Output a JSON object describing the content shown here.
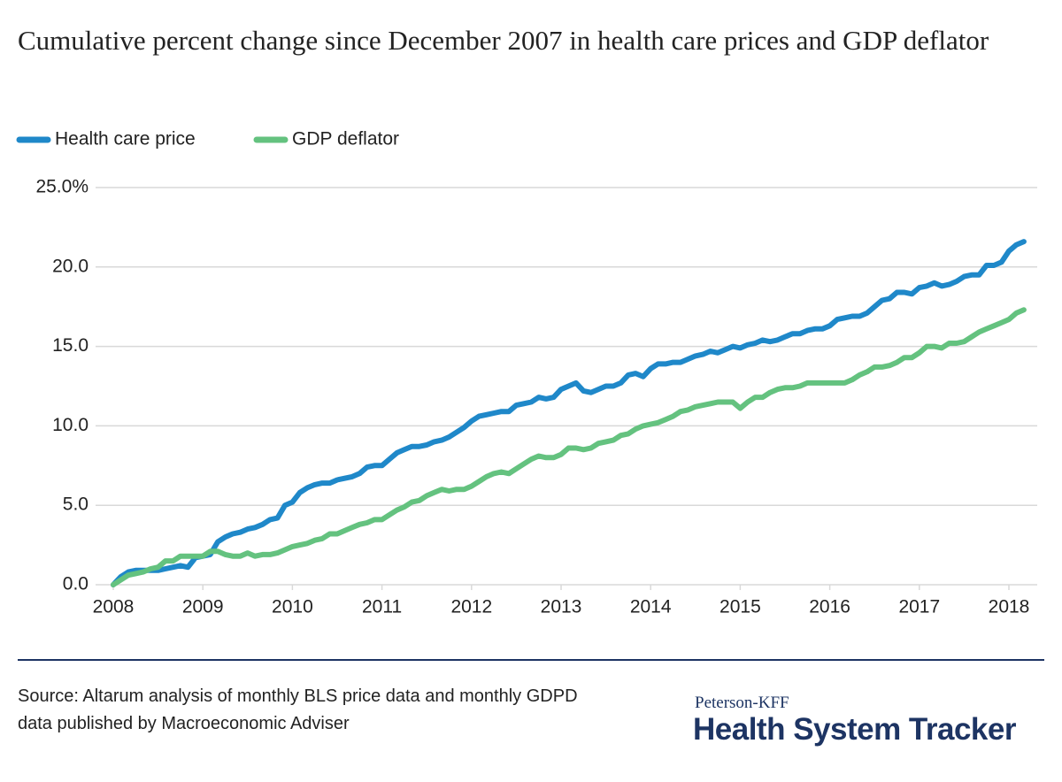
{
  "chart_data": {
    "type": "line",
    "title": "Cumulative percent change since December 2007 in health care prices and GDP deflator",
    "series": [
      {
        "name": "Health care price",
        "color": "#1f88c9",
        "values": [
          0,
          0.5,
          0.8,
          0.9,
          0.9,
          0.9,
          0.9,
          1.0,
          1.1,
          1.2,
          1.1,
          1.7,
          1.8,
          1.9,
          2.7,
          3.0,
          3.2,
          3.3,
          3.5,
          3.6,
          3.8,
          4.1,
          4.2,
          5.0,
          5.2,
          5.8,
          6.1,
          6.3,
          6.4,
          6.4,
          6.6,
          6.7,
          6.8,
          7.0,
          7.4,
          7.5,
          7.5,
          7.9,
          8.3,
          8.5,
          8.7,
          8.7,
          8.8,
          9.0,
          9.1,
          9.3,
          9.6,
          9.9,
          10.3,
          10.6,
          10.7,
          10.8,
          10.9,
          10.9,
          11.3,
          11.4,
          11.5,
          11.8,
          11.7,
          11.8,
          12.3,
          12.5,
          12.7,
          12.2,
          12.1,
          12.3,
          12.5,
          12.5,
          12.7,
          13.2,
          13.3,
          13.1,
          13.6,
          13.9,
          13.9,
          14.0,
          14.0,
          14.2,
          14.4,
          14.5,
          14.7,
          14.6,
          14.8,
          15.0,
          14.9,
          15.1,
          15.2,
          15.4,
          15.3,
          15.4,
          15.6,
          15.8,
          15.8,
          16.0,
          16.1,
          16.1,
          16.3,
          16.7,
          16.8,
          16.9,
          16.9,
          17.1,
          17.5,
          17.9,
          18.0,
          18.4,
          18.4,
          18.3,
          18.7,
          18.8,
          19.0,
          18.8,
          18.9,
          19.1,
          19.4,
          19.5,
          19.5,
          20.1,
          20.1,
          20.3,
          21.0,
          21.4,
          21.6
        ]
      },
      {
        "name": "GDP deflator",
        "color": "#64c27f",
        "values": [
          0,
          0.3,
          0.6,
          0.7,
          0.8,
          1.0,
          1.1,
          1.5,
          1.5,
          1.8,
          1.8,
          1.8,
          1.8,
          2.1,
          2.1,
          1.9,
          1.8,
          1.8,
          2.0,
          1.8,
          1.9,
          1.9,
          2.0,
          2.2,
          2.4,
          2.5,
          2.6,
          2.8,
          2.9,
          3.2,
          3.2,
          3.4,
          3.6,
          3.8,
          3.9,
          4.1,
          4.1,
          4.4,
          4.7,
          4.9,
          5.2,
          5.3,
          5.6,
          5.8,
          6.0,
          5.9,
          6.0,
          6.0,
          6.2,
          6.5,
          6.8,
          7.0,
          7.1,
          7.0,
          7.3,
          7.6,
          7.9,
          8.1,
          8.0,
          8.0,
          8.2,
          8.6,
          8.6,
          8.5,
          8.6,
          8.9,
          9.0,
          9.1,
          9.4,
          9.5,
          9.8,
          10.0,
          10.1,
          10.2,
          10.4,
          10.6,
          10.9,
          11.0,
          11.2,
          11.3,
          11.4,
          11.5,
          11.5,
          11.5,
          11.1,
          11.5,
          11.8,
          11.8,
          12.1,
          12.3,
          12.4,
          12.4,
          12.5,
          12.7,
          12.7,
          12.7,
          12.7,
          12.7,
          12.7,
          12.9,
          13.2,
          13.4,
          13.7,
          13.7,
          13.8,
          14.0,
          14.3,
          14.3,
          14.6,
          15.0,
          15.0,
          14.9,
          15.2,
          15.2,
          15.3,
          15.6,
          15.9,
          16.1,
          16.3,
          16.5,
          16.7,
          17.1,
          17.3
        ]
      }
    ],
    "ylim": [
      0,
      25
    ],
    "yticks": [
      {
        "value": 0,
        "label": "0.0"
      },
      {
        "value": 5,
        "label": "5.0"
      },
      {
        "value": 10,
        "label": "10.0"
      },
      {
        "value": 15,
        "label": "15.0"
      },
      {
        "value": 20,
        "label": "20.0"
      },
      {
        "value": 25,
        "label": "25.0%"
      }
    ],
    "xticks": [
      {
        "value": 0,
        "label": "2008"
      },
      {
        "value": 12,
        "label": "2009"
      },
      {
        "value": 24,
        "label": "2010"
      },
      {
        "value": 36,
        "label": "2011"
      },
      {
        "value": 48,
        "label": "2012"
      },
      {
        "value": 60,
        "label": "2013"
      },
      {
        "value": 72,
        "label": "2014"
      },
      {
        "value": 84,
        "label": "2015"
      },
      {
        "value": 96,
        "label": "2016"
      },
      {
        "value": 108,
        "label": "2017"
      },
      {
        "value": 120,
        "label": "2018"
      }
    ],
    "grid": true,
    "legend": "top-left"
  },
  "footer": {
    "source": "Source: Altarum analysis of monthly BLS price data and monthly GDPD data published by Macroeconomic Adviser",
    "brand_small": "Peterson-KFF",
    "brand": "Health System Tracker"
  }
}
